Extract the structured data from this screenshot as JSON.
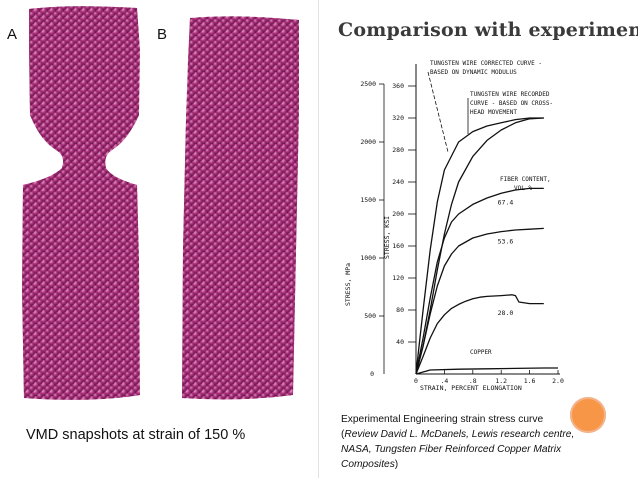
{
  "panel_labels": {
    "a": "A",
    "b": "B"
  },
  "caption_left": "VMD snapshots at strain of 150 %",
  "title": "Comparison with experiment",
  "caption_right": {
    "line1": "Experimental Engineering strain stress curve",
    "open": "(",
    "review": "Review David L. McDanels, Lewis research centre, NASA, Tungsten Fiber Reinforced Copper Matrix Composites",
    "close": ")"
  },
  "colors": {
    "atoms": "#b0347f",
    "accent_dot": "#f79646"
  },
  "chart_data": {
    "type": "line",
    "xlabel": "STRAIN, PERCENT ELONGATION",
    "ylabel_mpa": "STRESS, MPa",
    "ylabel_ksi": "STRESS, KSI",
    "xlim": [
      0,
      2.0
    ],
    "x_ticks": [
      "0",
      ".4",
      ".8",
      "1.2",
      "1.6",
      "2.0"
    ],
    "mpa_ticks": [
      "500",
      "1000",
      "1500",
      "2000",
      "2500"
    ],
    "ksi_ticks": [
      "40",
      "80",
      "120",
      "160",
      "200",
      "240",
      "280",
      "320",
      "360"
    ],
    "legend_title": "FIBER CONTENT,",
    "legend_unit": "VOL %",
    "annotations": {
      "corrected_l1": "TUNGSTEN WIRE CORRECTED CURVE -",
      "corrected_l2": "BASED ON DYNAMIC MODULUS",
      "recorded_l1": "TUNGSTEN WIRE RECORDED",
      "recorded_l2": "CURVE - BASED ON CROSS-",
      "recorded_l3": "HEAD MOVEMENT",
      "copper": "COPPER"
    },
    "series": [
      {
        "name": "TUNGSTEN WIRE CORRECTED CURVE",
        "x": [
          0,
          0.05,
          0.1,
          0.2,
          0.3,
          0.4,
          0.6,
          0.8,
          1.0,
          1.2,
          1.4,
          1.6,
          1.8
        ],
        "y": [
          0,
          40,
          80,
          155,
          215,
          255,
          290,
          303,
          310,
          314,
          318,
          320,
          320
        ]
      },
      {
        "name": "TUNGSTEN WIRE RECORDED CURVE",
        "x": [
          0,
          0.1,
          0.2,
          0.3,
          0.4,
          0.5,
          0.6,
          0.8,
          1.0,
          1.2,
          1.4,
          1.6,
          1.8
        ],
        "y": [
          0,
          35,
          80,
          130,
          175,
          212,
          240,
          272,
          292,
          305,
          314,
          319,
          320
        ]
      },
      {
        "name": "67.4",
        "x": [
          0,
          0.1,
          0.2,
          0.3,
          0.4,
          0.5,
          0.6,
          0.8,
          1.0,
          1.2,
          1.4,
          1.6,
          1.8
        ],
        "y": [
          0,
          45,
          95,
          140,
          170,
          190,
          200,
          212,
          220,
          226,
          230,
          232,
          232
        ]
      },
      {
        "name": "53.6",
        "x": [
          0,
          0.1,
          0.2,
          0.3,
          0.4,
          0.5,
          0.6,
          0.8,
          1.0,
          1.2,
          1.4,
          1.6,
          1.8
        ],
        "y": [
          0,
          35,
          75,
          110,
          135,
          150,
          160,
          170,
          175,
          178,
          180,
          181,
          182
        ]
      },
      {
        "name": "28.0",
        "x": [
          0,
          0.1,
          0.2,
          0.3,
          0.4,
          0.5,
          0.6,
          0.7,
          0.8,
          0.9,
          1.0,
          1.2,
          1.35,
          1.4,
          1.45,
          1.6,
          1.8
        ],
        "y": [
          0,
          22,
          45,
          63,
          74,
          82,
          87,
          91,
          94,
          96,
          97,
          98,
          99,
          98,
          90,
          88,
          88
        ]
      },
      {
        "name": "COPPER",
        "x": [
          0,
          0.2,
          0.6,
          1.0,
          1.4,
          1.8,
          2.0
        ],
        "y": [
          0,
          5,
          6,
          6.5,
          7,
          7.5,
          7.5
        ]
      }
    ],
    "series_labels": [
      {
        "text": "67.4",
        "x": 1.15,
        "y": 212
      },
      {
        "text": "53.6",
        "x": 1.15,
        "y": 163
      },
      {
        "text": "28.0",
        "x": 1.15,
        "y": 74
      }
    ]
  }
}
